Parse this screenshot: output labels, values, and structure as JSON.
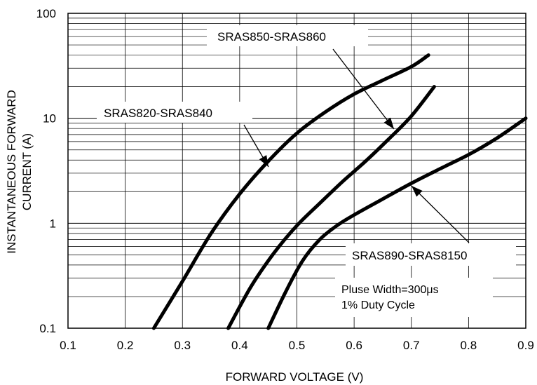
{
  "chart_data": {
    "type": "line",
    "xlabel": "FORWARD VOLTAGE (V)",
    "ylabel_lines": [
      "INSTANTANEOUS FORWARD",
      "CURRENT (A)"
    ],
    "xlim": [
      0.1,
      0.9
    ],
    "ylim": [
      0.1,
      100
    ],
    "y_scale": "log",
    "grid": true,
    "x_ticks": [
      "0.1",
      "0.2",
      "0.3",
      "0.4",
      "0.5",
      "0.6",
      "0.7",
      "0.8",
      "0.9"
    ],
    "y_ticks": [
      "0.1",
      "1",
      "10",
      "100"
    ],
    "series": [
      {
        "name": "SRAS820-SRAS840",
        "x": [
          0.25,
          0.3,
          0.35,
          0.4,
          0.45,
          0.5,
          0.55,
          0.6,
          0.65,
          0.7,
          0.73
        ],
        "y": [
          0.1,
          0.28,
          0.8,
          1.9,
          3.9,
          7.2,
          11.5,
          17,
          23,
          31,
          40
        ]
      },
      {
        "name": "SRAS850-SRAS860",
        "x": [
          0.38,
          0.42,
          0.46,
          0.5,
          0.54,
          0.58,
          0.62,
          0.66,
          0.7,
          0.74
        ],
        "y": [
          0.1,
          0.25,
          0.52,
          0.95,
          1.55,
          2.5,
          3.9,
          6.3,
          10.5,
          20
        ]
      },
      {
        "name": "SRAS890-SRAS8150",
        "x": [
          0.45,
          0.48,
          0.51,
          0.54,
          0.57,
          0.6,
          0.65,
          0.7,
          0.75,
          0.8,
          0.85,
          0.9
        ],
        "y": [
          0.1,
          0.22,
          0.44,
          0.7,
          0.95,
          1.2,
          1.7,
          2.4,
          3.3,
          4.5,
          6.5,
          10
        ]
      }
    ],
    "annotations": {
      "label_820": "SRAS820-SRAS840",
      "label_850": "SRAS850-SRAS860",
      "label_890": "SRAS890-SRAS8150",
      "note_line1": "Pluse Width=300μs",
      "note_line2": "1% Duty Cycle"
    }
  }
}
